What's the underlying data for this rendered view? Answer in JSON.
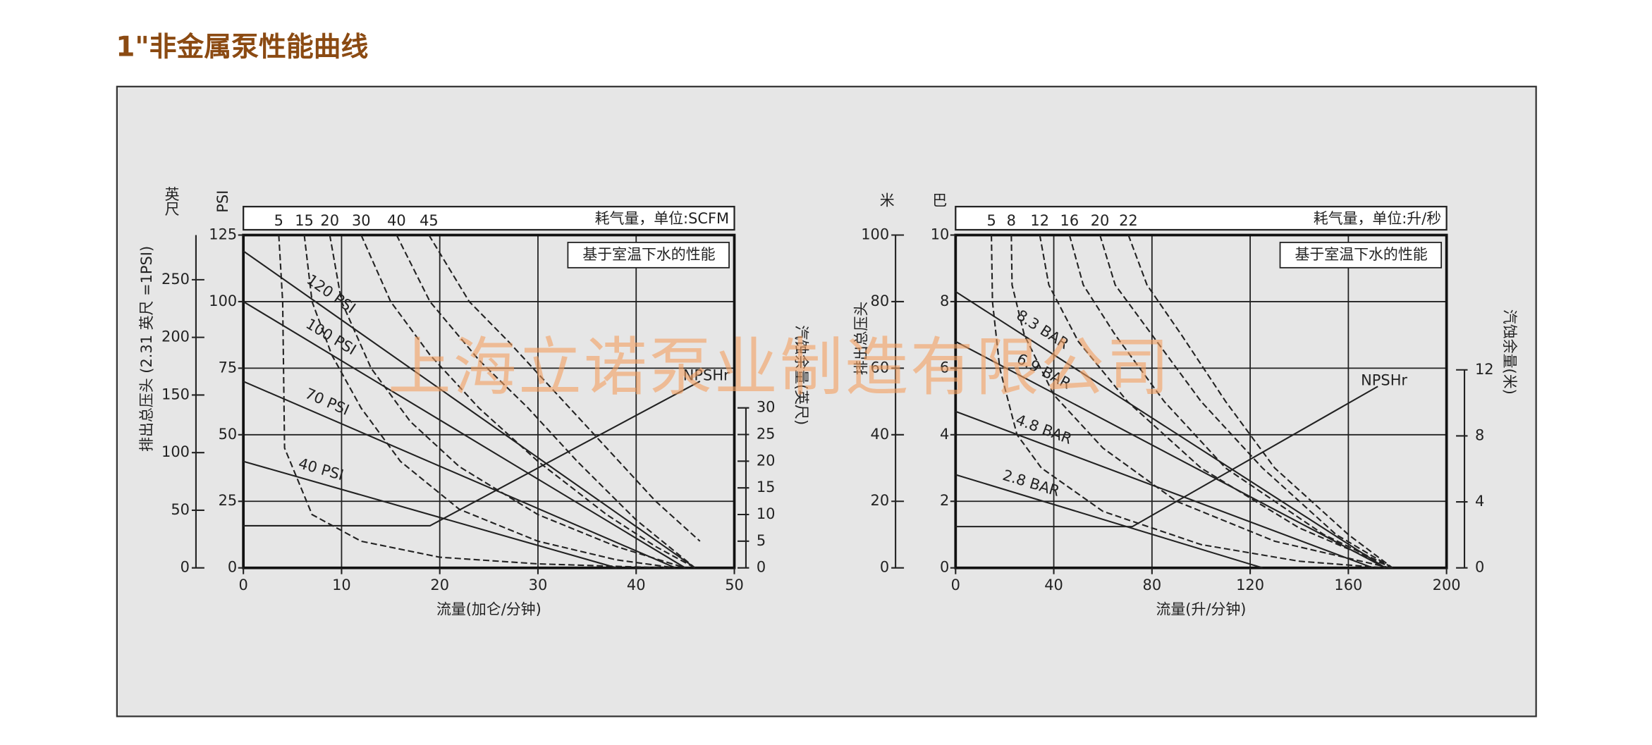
{
  "title": "1\"非金属泵性能曲线",
  "watermark": "上海立诺泵业制造有限公司",
  "chart_data": [
    {
      "type": "line",
      "top_label": "耗气量，单位:SCFM",
      "note": "基于室温下水的性能",
      "xlabel": "流量(加仑/分钟)",
      "ylabel": "PSI",
      "y2label": "汽蚀余量(英尺)",
      "yalt": {
        "unit": "英尺",
        "label": "排出总压头 (2.31 英尺 =1PSI)",
        "lim": [
          0,
          288.75
        ],
        "ticks": [
          0,
          50,
          100,
          150,
          200,
          250
        ]
      },
      "xlim": [
        0,
        50
      ],
      "xticks": [
        0,
        10,
        20,
        30,
        40,
        50
      ],
      "ylim": [
        0,
        125
      ],
      "yticks": [
        0,
        25,
        50,
        75,
        100,
        125
      ],
      "y2lim": [
        0,
        62.4
      ],
      "y2ticks": [
        0,
        5,
        10,
        15,
        20,
        25,
        30
      ],
      "grid": true,
      "series": [
        {
          "name": "120 PSI",
          "color": "#222",
          "x": [
            0,
            46
          ],
          "values": [
            119,
            0
          ]
        },
        {
          "name": "100 PSI",
          "color": "#222",
          "x": [
            0,
            45
          ],
          "values": [
            100,
            0
          ]
        },
        {
          "name": "70 PSI",
          "color": "#222",
          "x": [
            0,
            44
          ],
          "values": [
            70,
            0
          ]
        },
        {
          "name": "40 PSI",
          "color": "#222",
          "x": [
            0,
            38
          ],
          "values": [
            40,
            0
          ]
        },
        {
          "name": "5",
          "color": "#222",
          "dash": true,
          "x": [
            3.6,
            4,
            4.2,
            7,
            12,
            20,
            30,
            43
          ],
          "values": [
            125,
            100,
            45,
            20,
            10,
            4,
            1.5,
            0
          ]
        },
        {
          "name": "15",
          "color": "#222",
          "dash": true,
          "x": [
            6.2,
            7,
            9,
            12,
            16,
            22,
            30,
            38,
            44
          ],
          "values": [
            125,
            100,
            80,
            60,
            40,
            22,
            10,
            3,
            0
          ]
        },
        {
          "name": "20",
          "color": "#222",
          "dash": true,
          "x": [
            8.8,
            10,
            13,
            17,
            22,
            30,
            38,
            45
          ],
          "values": [
            125,
            100,
            75,
            55,
            38,
            20,
            8,
            0
          ]
        },
        {
          "name": "30",
          "color": "#222",
          "dash": true,
          "x": [
            12,
            15,
            19,
            24,
            30,
            37,
            42,
            46
          ],
          "values": [
            125,
            100,
            80,
            60,
            40,
            20,
            8,
            0
          ]
        },
        {
          "name": "40",
          "color": "#222",
          "dash": true,
          "x": [
            15.6,
            19,
            24,
            29,
            34,
            40,
            46
          ],
          "values": [
            125,
            100,
            78,
            60,
            40,
            18,
            0
          ]
        },
        {
          "name": "45",
          "color": "#222",
          "dash": true,
          "x": [
            18.9,
            23,
            27,
            32,
            37,
            42,
            46.5
          ],
          "values": [
            125,
            100,
            85,
            65,
            45,
            25,
            10
          ]
        },
        {
          "name": "NPSHr",
          "color": "#222",
          "axis": "y2",
          "x": [
            0,
            19,
            46.5
          ],
          "values": [
            7.9,
            7.9,
            35
          ]
        }
      ]
    },
    {
      "type": "line",
      "top_label": "耗气量，单位:升/秒",
      "note": "基于室温下水的性能",
      "xlabel": "流量(升/分钟)",
      "ylabel": "巴",
      "y2label": "汽蚀余量(米)",
      "yalt": {
        "unit": "米",
        "label": "排出总压头",
        "lim": [
          0,
          100
        ],
        "ticks": [
          0,
          20,
          40,
          60,
          80,
          100
        ]
      },
      "xlim": [
        0,
        200
      ],
      "xticks": [
        0,
        40,
        80,
        120,
        160,
        200
      ],
      "ylim": [
        0,
        10
      ],
      "yticks": [
        0,
        2,
        4,
        6,
        8,
        10
      ],
      "y2lim": [
        0,
        20.17
      ],
      "y2ticks": [
        0,
        4,
        8,
        12
      ],
      "grid": true,
      "series": [
        {
          "name": "8.3 BAR",
          "color": "#222",
          "x": [
            0,
            175
          ],
          "values": [
            8.3,
            0
          ]
        },
        {
          "name": "6.9 BAR",
          "color": "#222",
          "x": [
            0,
            175
          ],
          "values": [
            6.8,
            0
          ]
        },
        {
          "name": "4.8 BAR",
          "color": "#222",
          "x": [
            0,
            170
          ],
          "values": [
            4.7,
            0
          ]
        },
        {
          "name": "2.8 BAR",
          "color": "#222",
          "x": [
            0,
            125
          ],
          "values": [
            2.8,
            0
          ]
        },
        {
          "name": "5",
          "color": "#222",
          "dash": true,
          "x": [
            14.6,
            15,
            18,
            25,
            35,
            60,
            100,
            140,
            175
          ],
          "values": [
            10,
            8,
            6,
            4,
            3,
            1.7,
            0.7,
            0.2,
            0
          ]
        },
        {
          "name": "8",
          "color": "#222",
          "dash": true,
          "x": [
            22.7,
            23,
            28,
            40,
            60,
            90,
            130,
            177
          ],
          "values": [
            10,
            8.5,
            7,
            5.2,
            3.6,
            2,
            0.8,
            0
          ]
        },
        {
          "name": "12",
          "color": "#222",
          "dash": true,
          "x": [
            34.3,
            38,
            50,
            70,
            100,
            140,
            178
          ],
          "values": [
            10,
            8.5,
            6.8,
            5,
            3,
            1.2,
            0
          ]
        },
        {
          "name": "16",
          "color": "#222",
          "dash": true,
          "x": [
            46.4,
            52,
            65,
            85,
            110,
            150,
            178
          ],
          "values": [
            10,
            8.5,
            7,
            5,
            3,
            1,
            0
          ]
        },
        {
          "name": "20",
          "color": "#222",
          "dash": true,
          "x": [
            58.8,
            65,
            80,
            100,
            125,
            155,
            178
          ],
          "values": [
            10,
            8.5,
            7,
            5,
            3,
            1,
            0
          ]
        },
        {
          "name": "22",
          "color": "#222",
          "dash": true,
          "x": [
            70.4,
            78,
            92,
            110,
            130,
            160,
            178
          ],
          "values": [
            10,
            8.5,
            7,
            5,
            3,
            1,
            0
          ]
        },
        {
          "name": "NPSHr",
          "color": "#222",
          "axis": "y2",
          "x": [
            0,
            72,
            172
          ],
          "values": [
            2.5,
            2.5,
            11
          ]
        }
      ]
    }
  ]
}
